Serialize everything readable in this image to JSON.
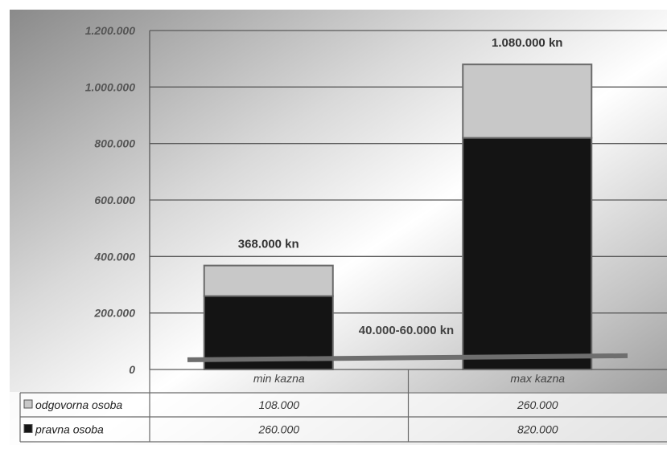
{
  "chart_data": {
    "type": "bar",
    "stacked": true,
    "categories": [
      "min kazna",
      "max kazna"
    ],
    "series": [
      {
        "name": "pravna osoba",
        "values": [
          260000,
          820000
        ],
        "color": "#141414"
      },
      {
        "name": "odgovorna osoba",
        "values": [
          108000,
          260000
        ],
        "color": "#c8c8c8"
      }
    ],
    "table": {
      "rows": [
        {
          "label": "odgovorna osoba",
          "values": [
            "108.000",
            "260.000"
          ]
        },
        {
          "label": "pravna osoba",
          "values": [
            "260.000",
            "820.000"
          ]
        }
      ]
    },
    "total_labels": [
      "368.000 kn",
      "1.080.000 kn"
    ],
    "annotation": "40.000-60.000 kn",
    "range_line": {
      "from": 40000,
      "to": 60000,
      "color": "#6e6e6e"
    },
    "ylim": [
      0,
      1200000
    ],
    "yticks": [
      0,
      200000,
      400000,
      600000,
      800000,
      1000000,
      1200000
    ],
    "ytick_labels": [
      "0",
      "200.000",
      "400.000",
      "600.000",
      "800.000",
      "1.000.000",
      "1.200.000"
    ],
    "grid": true,
    "legend": "in data table"
  }
}
